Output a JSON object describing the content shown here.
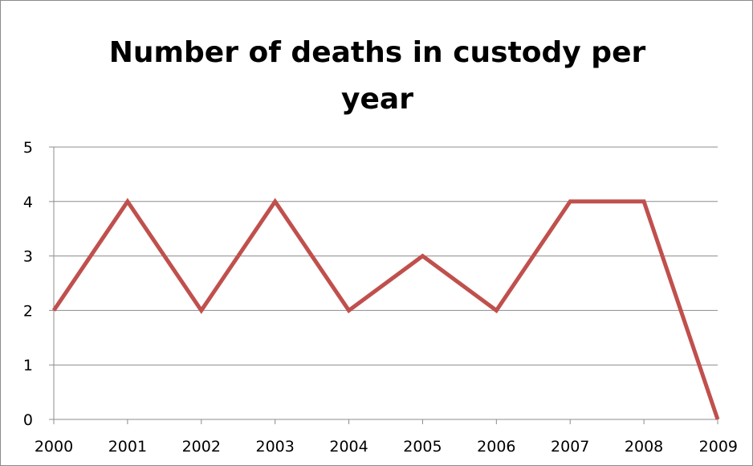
{
  "chart_data": {
    "type": "line",
    "title": "Number of deaths in custody per year",
    "xlabel": "",
    "ylabel": "",
    "x": [
      "2000",
      "2001",
      "2002",
      "2003",
      "2004",
      "2005",
      "2006",
      "2007",
      "2008",
      "2009"
    ],
    "series": [
      {
        "values": [
          2,
          4,
          2,
          4,
          2,
          3,
          2,
          4,
          4,
          0
        ],
        "color": "#c0504d"
      }
    ],
    "ylim": [
      0,
      5
    ],
    "yticks": [
      "0",
      "1",
      "2",
      "3",
      "4",
      "5"
    ],
    "grid": true,
    "legend": "none",
    "gridline_color": "#8c8c8c"
  }
}
